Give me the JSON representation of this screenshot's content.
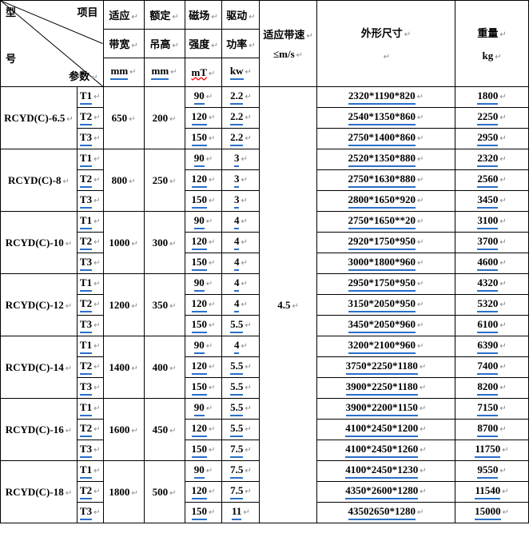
{
  "header": {
    "diag_model_top": "型",
    "diag_model_bot": "号",
    "diag_proj": "项目",
    "diag_param": "参数",
    "col3_l1": "适应",
    "col3_l2": "带宽",
    "col3_l3": "mm",
    "col4_l1": "额定",
    "col4_l2": "吊高",
    "col4_l3": "mm",
    "col5_l1": "磁场",
    "col5_l2": "强度",
    "col5_l3": "mT",
    "col6_l1": "驱动",
    "col6_l2": "功率",
    "col6_l3": "kw",
    "col7_l1": "适应带速",
    "col7_l2": "≤m/s",
    "col8_l1": "外形尺寸",
    "col9_l1": "重量",
    "col9_l2": "kg"
  },
  "beltspeed": "4.5",
  "groups": [
    {
      "model": "RCYD(C)-6.5",
      "bw": "650",
      "dh": "200",
      "rows": [
        {
          "t": "T1",
          "mt": "90",
          "kw": "2.2",
          "dim": "2320*1190*820",
          "wt": "1800"
        },
        {
          "t": "T2",
          "mt": "120",
          "kw": "2.2",
          "dim": "2540*1350*860",
          "wt": "2250"
        },
        {
          "t": "T3",
          "mt": "150",
          "kw": "2.2",
          "dim": "2750*1400*860",
          "wt": "2950"
        }
      ]
    },
    {
      "model": "RCYD(C)-8",
      "bw": "800",
      "dh": "250",
      "rows": [
        {
          "t": "T1",
          "mt": "90",
          "kw": "3",
          "dim": "2520*1350*880",
          "wt": "2320"
        },
        {
          "t": "T2",
          "mt": "120",
          "kw": "3",
          "dim": "2750*1630*880",
          "wt": "2560"
        },
        {
          "t": "T3",
          "mt": "150",
          "kw": "3",
          "dim": "2800*1650*920",
          "wt": "3450"
        }
      ]
    },
    {
      "model": "RCYD(C)-10",
      "bw": "1000",
      "dh": "300",
      "rows": [
        {
          "t": "T1",
          "mt": "90",
          "kw": "4",
          "dim": "2750*1650**20",
          "wt": "3100"
        },
        {
          "t": "T2",
          "mt": "120",
          "kw": "4",
          "dim": "2920*1750*950",
          "wt": "3700"
        },
        {
          "t": "T3",
          "mt": "150",
          "kw": "4",
          "dim": "3000*1800*960",
          "wt": "4600"
        }
      ]
    },
    {
      "model": "RCYD(C)-12",
      "bw": "1200",
      "dh": "350",
      "rows": [
        {
          "t": "T1",
          "mt": "90",
          "kw": "4",
          "dim": "2950*1750*950",
          "wt": "4320"
        },
        {
          "t": "T2",
          "mt": "120",
          "kw": "4",
          "dim": "3150*2050*950",
          "wt": "5320"
        },
        {
          "t": "T3",
          "mt": "150",
          "kw": "5.5",
          "dim": "3450*2050*960",
          "wt": "6100"
        }
      ]
    },
    {
      "model": "RCYD(C)-14",
      "bw": "1400",
      "dh": "400",
      "rows": [
        {
          "t": "T1",
          "mt": "90",
          "kw": "4",
          "dim": "3200*2100*960",
          "wt": "6390"
        },
        {
          "t": "T2",
          "mt": "120",
          "kw": "5.5",
          "dim": "3750*2250*1180",
          "wt": "7400"
        },
        {
          "t": "T3",
          "mt": "150",
          "kw": "5.5",
          "dim": "3900*2250*1180",
          "wt": "8200"
        }
      ]
    },
    {
      "model": "RCYD(C)-16",
      "bw": "1600",
      "dh": "450",
      "rows": [
        {
          "t": "T1",
          "mt": "90",
          "kw": "5.5",
          "dim": "3900*2200*1150",
          "wt": "7150"
        },
        {
          "t": "T2",
          "mt": "120",
          "kw": "5.5",
          "dim": "4100*2450*1200",
          "wt": "8700"
        },
        {
          "t": "T3",
          "mt": "150",
          "kw": "7.5",
          "dim": "4100*2450*1260",
          "wt": "11750"
        }
      ]
    },
    {
      "model": "RCYD(C)-18",
      "bw": "1800",
      "dh": "500",
      "rows": [
        {
          "t": "T1",
          "mt": "90",
          "kw": "7.5",
          "dim": "4100*2450*1230",
          "wt": "9550"
        },
        {
          "t": "T2",
          "mt": "120",
          "kw": "7.5",
          "dim": "4350*2600*1280",
          "wt": "11540"
        },
        {
          "t": "T3",
          "mt": "150",
          "kw": "11",
          "dim": "43502650*1280",
          "wt": "15000"
        }
      ]
    }
  ]
}
